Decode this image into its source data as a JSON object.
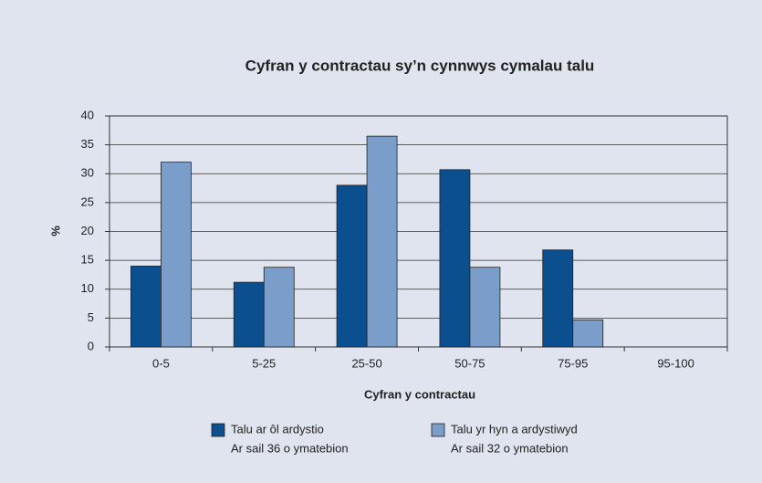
{
  "chart_data": {
    "type": "bar",
    "title": "Cyfran y contractau sy’n cynnwys cymalau talu",
    "xlabel": "Cyfran y contractau",
    "ylabel": "%",
    "categories": [
      "0-5",
      "5-25",
      "25-50",
      "50-75",
      "75-95",
      "95-100"
    ],
    "series": [
      {
        "name": "Talu ar ôl ardystio",
        "note": "Ar sail 36 o ymatebion",
        "color": "#0b4f8e",
        "values": [
          14,
          11.2,
          28,
          30.7,
          16.8,
          0
        ]
      },
      {
        "name": "Talu yr hyn a ardystiwyd",
        "note": "Ar sail 32 o ymatebion",
        "color": "#7b9dca",
        "values": [
          32,
          13.8,
          36.5,
          13.8,
          4.7,
          0
        ]
      }
    ],
    "ylim": [
      0,
      40
    ],
    "yticks": [
      0,
      5,
      10,
      15,
      20,
      25,
      30,
      35,
      40
    ],
    "grid": true
  }
}
